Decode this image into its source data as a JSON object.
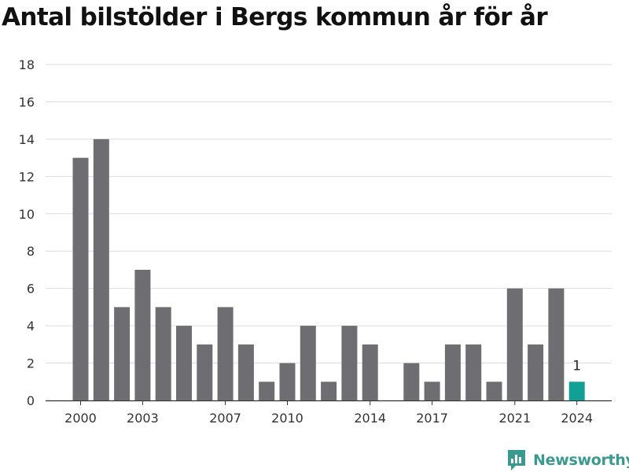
{
  "title": "Antal bilstölder i Bergs kommun år för år",
  "brand": {
    "name": "Newsworthy",
    "color": "#3a9a90",
    "icon": "bar-chart-icon"
  },
  "colors": {
    "bar": "#6e6d72",
    "highlight": "#11a096",
    "grid": "#dddddd",
    "text": "#333333"
  },
  "chart_data": {
    "type": "bar",
    "categories": [
      "2000",
      "2001",
      "2002",
      "2003",
      "2004",
      "2005",
      "2006",
      "2007",
      "2008",
      "2009",
      "2010",
      "2011",
      "2012",
      "2013",
      "2014",
      "2015",
      "2016",
      "2017",
      "2018",
      "2019",
      "2020",
      "2021",
      "2022",
      "2023",
      "2024"
    ],
    "values": [
      13,
      14,
      5,
      7,
      5,
      4,
      3,
      5,
      3,
      1,
      2,
      4,
      1,
      4,
      3,
      0,
      2,
      1,
      3,
      3,
      1,
      6,
      3,
      6,
      1
    ],
    "x_tick_labels": [
      "2000",
      "2003",
      "2007",
      "2010",
      "2014",
      "2017",
      "2021",
      "2024"
    ],
    "y_ticks": [
      0,
      2,
      4,
      6,
      8,
      10,
      12,
      14,
      16,
      18
    ],
    "ylim": [
      0,
      18
    ],
    "grid": true,
    "highlight": {
      "category": "2024",
      "label": "1"
    },
    "xlabel": "",
    "ylabel": ""
  }
}
